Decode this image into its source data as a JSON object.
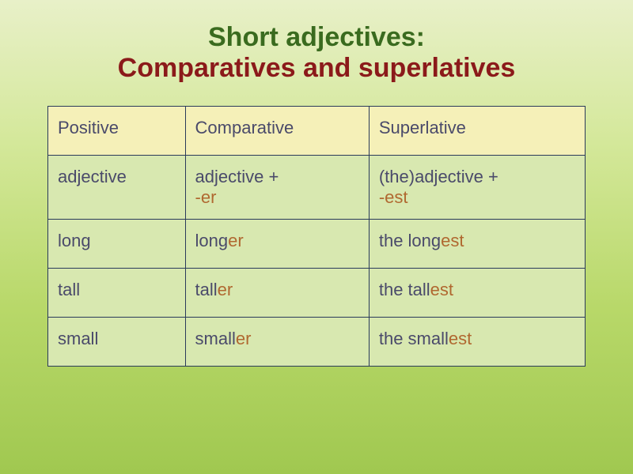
{
  "title": {
    "line1": "Short adjectives:",
    "line2": "Comparatives and superlatives"
  },
  "table": {
    "header_row": {
      "bg_color": "#f5f0b8",
      "cells": [
        "Positive",
        "Comparative",
        "Superlative"
      ]
    },
    "rule_row": {
      "bg_color": "#d8e8b0",
      "cells": [
        {
          "plain": "adjective"
        },
        {
          "base": "adjective + ",
          "suffix": "-er"
        },
        {
          "base": "(the)adjective + ",
          "suffix": "-est"
        }
      ]
    },
    "data_rows": [
      {
        "positive": "long",
        "comp_base": "long",
        "comp_suf": "er",
        "sup_pre": "the ",
        "sup_base": "long",
        "sup_suf": "est"
      },
      {
        "positive": "tall",
        "comp_base": "tall",
        "comp_suf": "er",
        "sup_pre": "the ",
        "sup_base": "tall",
        "sup_suf": "est"
      },
      {
        "positive": "small",
        "comp_base": "small",
        "comp_suf": "er",
        "sup_pre": "the ",
        "sup_base": "small",
        "sup_suf": "est"
      }
    ],
    "colors": {
      "border": "#2a3a5a",
      "text": "#4a4a6a",
      "highlight": "#b06830"
    },
    "font_size_pt": 16
  },
  "background_gradient": [
    "#e8f0c8",
    "#d4e89a",
    "#b8d869",
    "#a0c850"
  ]
}
